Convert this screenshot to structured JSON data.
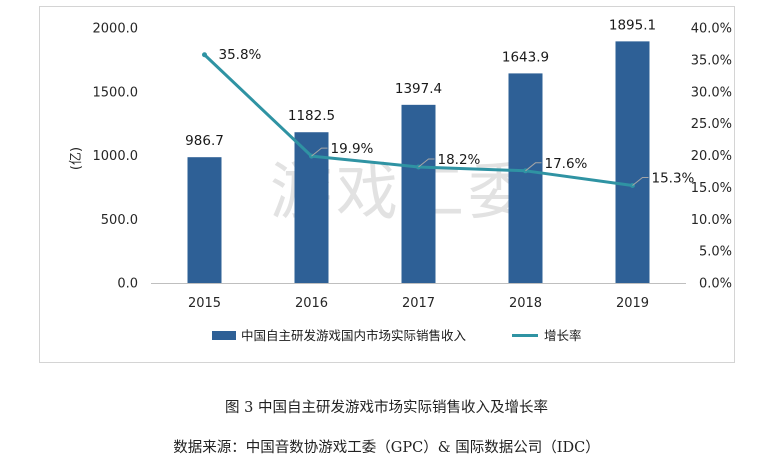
{
  "chart_data": {
    "type": "bar",
    "categories": [
      "2015",
      "2016",
      "2017",
      "2018",
      "2019"
    ],
    "series": [
      {
        "name": "中国自主研发游戏国内市场实际销售收入",
        "type": "bar",
        "axis": "left",
        "values": [
          986.7,
          1182.5,
          1397.4,
          1643.9,
          1895.1
        ],
        "labels": [
          "986.7",
          "1182.5",
          "1397.4",
          "1643.9",
          "1895.1"
        ],
        "color": "#2e6096"
      },
      {
        "name": "增长率",
        "type": "line",
        "axis": "right",
        "values": [
          35.8,
          19.9,
          18.2,
          17.6,
          15.3
        ],
        "labels": [
          "35.8%",
          "19.9%",
          "18.2%",
          "17.6%",
          "15.3%"
        ],
        "color": "#2f93a3"
      }
    ],
    "ylabel": "(亿)",
    "ylim": [
      0,
      2000
    ],
    "y_ticks": [
      "0.0",
      "500.0",
      "1000.0",
      "1500.0",
      "2000.0"
    ],
    "y2lim": [
      0,
      40
    ],
    "y2_ticks": [
      "0.0%",
      "5.0%",
      "10.0%",
      "15.0%",
      "20.0%",
      "25.0%",
      "30.0%",
      "35.0%",
      "40.0%"
    ],
    "grid": false,
    "legend": "bottom",
    "watermark": "游戏工委"
  },
  "caption": "图 3  中国自主研发游戏市场实际销售收入及增长率",
  "source": "数据来源：中国音数协游戏工委（GPC）& 国际数据公司（IDC）"
}
